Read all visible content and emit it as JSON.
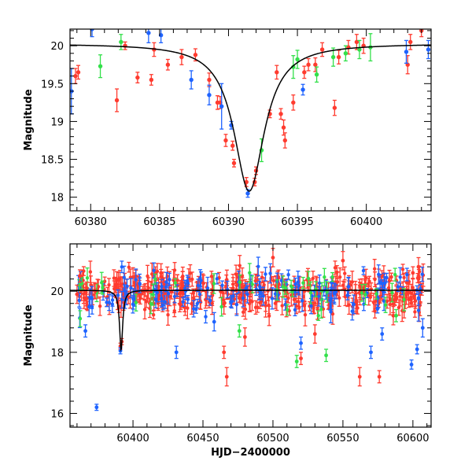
{
  "colors": {
    "red": "#ff3b2f",
    "blue": "#1e63ff",
    "green": "#33e04a",
    "curve": "#000000",
    "frame": "#000000"
  },
  "chart_data": [
    {
      "type": "scatter",
      "xlabel": "",
      "ylabel": "Magnitude",
      "xlim": [
        60378.5,
        60404.7
      ],
      "ylim": [
        20.22,
        17.82
      ],
      "y_inverted": true,
      "xticks": [
        60380,
        60385,
        60390,
        60395,
        60400
      ],
      "yticks": [
        18,
        18.5,
        19,
        19.5,
        20
      ],
      "ytick_labels": [
        "18",
        "18.5",
        "19",
        "19.5",
        "20"
      ],
      "model_curve": {
        "type": "lorentzian",
        "baseline": 20.03,
        "peak_mag": 18.08,
        "t0": 60391.5,
        "width": 1.35
      },
      "series": [
        {
          "color": "red",
          "points": [
            [
              60378.9,
              19.6,
              0.1
            ],
            [
              60379.1,
              19.65,
              0.09
            ],
            [
              60381.9,
              19.28,
              0.15
            ],
            [
              60382.5,
              20.0,
              0.05
            ],
            [
              60383.4,
              19.58,
              0.07
            ],
            [
              60384.4,
              19.55,
              0.07
            ],
            [
              60384.6,
              19.95,
              0.09
            ],
            [
              60385.6,
              19.75,
              0.07
            ],
            [
              60386.6,
              19.85,
              0.1
            ],
            [
              60387.6,
              19.88,
              0.08
            ],
            [
              60388.6,
              19.55,
              0.09
            ],
            [
              60389.2,
              19.25,
              0.09
            ],
            [
              60389.4,
              19.25,
              0.08
            ],
            [
              60389.8,
              18.75,
              0.08
            ],
            [
              60390.3,
              18.68,
              0.06
            ],
            [
              60390.4,
              18.45,
              0.05
            ],
            [
              60391.3,
              18.2,
              0.06
            ],
            [
              60391.9,
              18.2,
              0.05
            ],
            [
              60392.0,
              18.35,
              0.05
            ],
            [
              60393.0,
              19.1,
              0.05
            ],
            [
              60393.5,
              19.65,
              0.09
            ],
            [
              60393.8,
              19.1,
              0.07
            ],
            [
              60394.0,
              18.92,
              0.1
            ],
            [
              60394.1,
              18.75,
              0.1
            ],
            [
              60394.7,
              19.25,
              0.1
            ],
            [
              60395.5,
              19.65,
              0.08
            ],
            [
              60395.8,
              19.75,
              0.08
            ],
            [
              60396.3,
              19.75,
              0.09
            ],
            [
              60396.8,
              19.95,
              0.09
            ],
            [
              60397.7,
              19.18,
              0.1
            ],
            [
              60398.0,
              19.85,
              0.09
            ],
            [
              60398.7,
              19.98,
              0.09
            ],
            [
              60399.3,
              20.05,
              0.1
            ],
            [
              60399.8,
              20.0,
              0.1
            ],
            [
              60403.0,
              19.75,
              0.12
            ],
            [
              60403.2,
              20.05,
              0.1
            ],
            [
              60404.0,
              20.2,
              0.08
            ]
          ]
        },
        {
          "color": "blue",
          "points": [
            [
              60378.6,
              19.4,
              0.3
            ],
            [
              60380.1,
              20.22,
              0.1
            ],
            [
              60384.2,
              20.17,
              0.13
            ],
            [
              60385.1,
              20.14,
              0.1
            ],
            [
              60387.3,
              19.55,
              0.12
            ],
            [
              60388.6,
              19.35,
              0.13
            ],
            [
              60389.5,
              19.2,
              0.3
            ],
            [
              60390.2,
              18.95,
              0.05
            ],
            [
              60391.4,
              18.05,
              0.05
            ],
            [
              60395.4,
              19.42,
              0.07
            ],
            [
              60402.9,
              19.92,
              0.15
            ],
            [
              60404.5,
              19.95,
              0.12
            ]
          ]
        },
        {
          "color": "green",
          "points": [
            [
              60380.7,
              19.73,
              0.15
            ],
            [
              60382.2,
              20.05,
              0.1
            ],
            [
              60392.4,
              18.62,
              0.15
            ],
            [
              60394.7,
              19.72,
              0.15
            ],
            [
              60395.0,
              19.82,
              0.12
            ],
            [
              60396.4,
              19.62,
              0.1
            ],
            [
              60397.6,
              19.85,
              0.12
            ],
            [
              60398.5,
              19.9,
              0.1
            ],
            [
              60399.5,
              19.95,
              0.12
            ],
            [
              60400.3,
              19.98,
              0.18
            ]
          ]
        }
      ]
    },
    {
      "type": "scatter",
      "xlabel": "HJD−2400000",
      "ylabel": "Magnitude",
      "xlim": [
        60355,
        60613
      ],
      "ylim": [
        21.55,
        15.55
      ],
      "y_inverted": true,
      "xticks": [
        60400,
        60450,
        60500,
        60550,
        60600
      ],
      "yticks": [
        16,
        18,
        20
      ],
      "ytick_labels": [
        "16",
        "18",
        "20"
      ],
      "model_curve": {
        "type": "lorentzian",
        "baseline": 20.03,
        "peak_mag": 18.08,
        "t0": 60391.5,
        "width": 1.35
      },
      "generated_cloud": {
        "x_range": [
          60360,
          60608
        ],
        "center_mag": 20.0,
        "spread": 0.55,
        "counts": {
          "red": 400,
          "blue": 140,
          "green": 40
        }
      },
      "series": [
        {
          "color": "red",
          "points": [
            [
              60360,
              19.9,
              0.3
            ],
            [
              60362,
              20.5,
              0.2
            ],
            [
              60367,
              20.1,
              0.2
            ],
            [
              60373,
              20.0,
              0.25
            ],
            [
              60390,
              19.5,
              0.2
            ],
            [
              60391,
              18.2,
              0.1
            ],
            [
              60392,
              18.35,
              0.1
            ],
            [
              60467,
              17.2,
              0.3
            ],
            [
              60465,
              18.0,
              0.2
            ],
            [
              60480,
              18.5,
              0.3
            ],
            [
              60520,
              17.8,
              0.2
            ],
            [
              60530,
              18.6,
              0.3
            ],
            [
              60562,
              17.2,
              0.3
            ],
            [
              60576,
              17.2,
              0.2
            ],
            [
              60586,
              19.2,
              0.3
            ],
            [
              60604,
              20.8,
              0.3
            ],
            [
              60600,
              20.6,
              0.2
            ],
            [
              60420,
              20.6,
              0.3
            ],
            [
              60500,
              21.1,
              0.3
            ],
            [
              60550,
              21.0,
              0.3
            ]
          ]
        },
        {
          "color": "blue",
          "points": [
            [
              60374,
              16.2,
              0.1
            ],
            [
              60366,
              18.7,
              0.2
            ],
            [
              60391,
              18.05,
              0.1
            ],
            [
              60431,
              18.0,
              0.2
            ],
            [
              60458,
              19.0,
              0.3
            ],
            [
              60520,
              18.3,
              0.2
            ],
            [
              60570,
              18.0,
              0.2
            ],
            [
              60578,
              18.6,
              0.2
            ],
            [
              60599,
              17.6,
              0.15
            ],
            [
              60603,
              18.1,
              0.15
            ],
            [
              60607,
              18.8,
              0.3
            ]
          ]
        },
        {
          "color": "green",
          "points": [
            [
              60476,
              18.7,
              0.2
            ],
            [
              60517,
              17.7,
              0.2
            ],
            [
              60538,
              17.9,
              0.2
            ],
            [
              60588,
              19.2,
              0.2
            ]
          ]
        }
      ]
    }
  ]
}
